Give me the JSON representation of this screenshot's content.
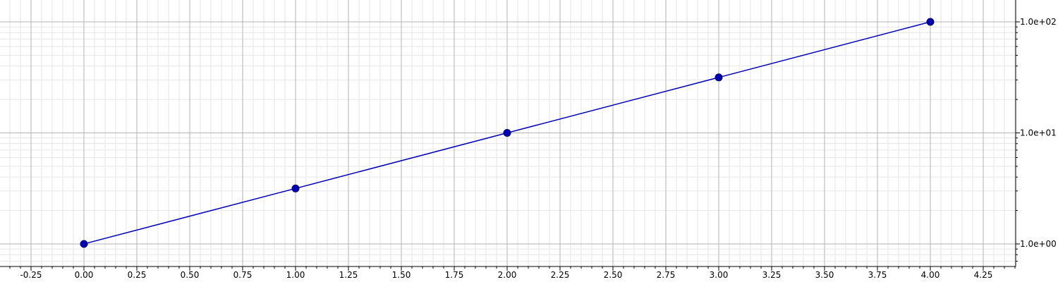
{
  "chart_data": {
    "type": "line",
    "title": "",
    "xlabel": "",
    "ylabel": "",
    "y_scale": "log",
    "y_axis_position": "right",
    "x_range": [
      -0.4,
      4.4
    ],
    "y_range": [
      0.65,
      170
    ],
    "x_ticks": [
      -0.25,
      0.0,
      0.25,
      0.5,
      0.75,
      1.0,
      1.25,
      1.5,
      1.75,
      2.0,
      2.25,
      2.5,
      2.75,
      3.0,
      3.25,
      3.5,
      3.75,
      4.0,
      4.25
    ],
    "x_tick_labels": [
      "-0.25",
      "0.00",
      "0.25",
      "0.50",
      "0.75",
      "1.00",
      "1.25",
      "1.50",
      "1.75",
      "2.00",
      "2.25",
      "2.50",
      "2.75",
      "3.00",
      "3.25",
      "3.50",
      "3.75",
      "4.00",
      "4.25"
    ],
    "y_ticks": [
      1,
      10,
      100
    ],
    "y_tick_labels": [
      "1.0e+00",
      "1.0e+01",
      "1.0e+02"
    ],
    "grid": true,
    "series": [
      {
        "x": [
          0,
          1,
          2,
          3,
          4
        ],
        "y": [
          1.0,
          3.16,
          10.0,
          31.6,
          100.0
        ],
        "color": "#0000b3"
      }
    ]
  }
}
